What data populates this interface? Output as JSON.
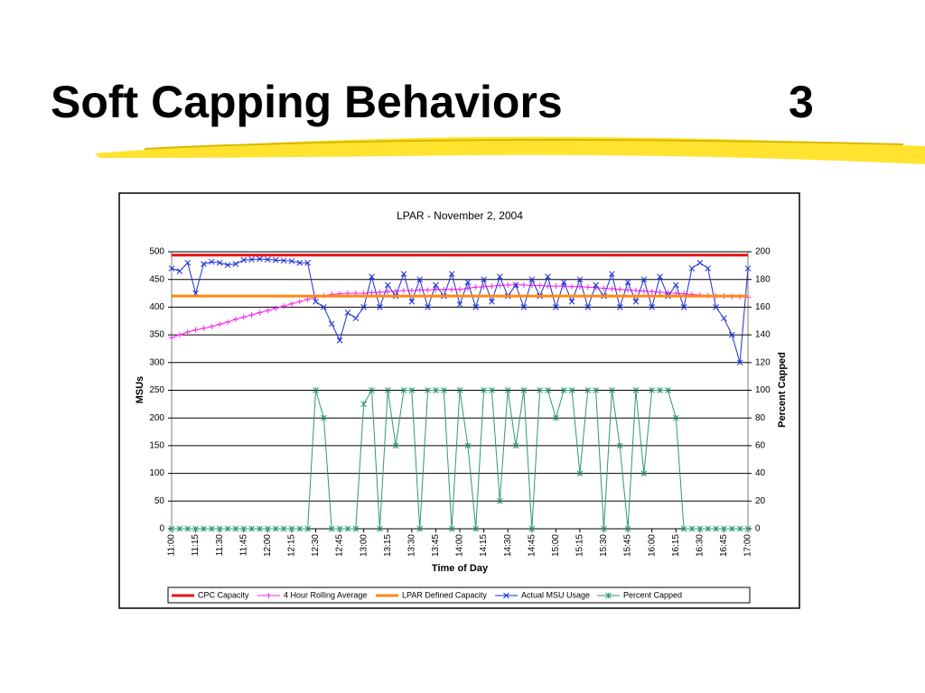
{
  "slide": {
    "title": "Soft Capping Behaviors",
    "number": "3"
  },
  "chart_data": {
    "type": "line",
    "title": "LPAR - November 2, 2004",
    "xlabel": "Time of Day",
    "ylabel": "MSUs",
    "y2label": "Percent Capped",
    "categories": [
      "11:00",
      null,
      null,
      "11:15",
      null,
      null,
      "11:30",
      null,
      null,
      "11:45",
      null,
      null,
      "12:00",
      null,
      null,
      "12:15",
      null,
      null,
      "12:30",
      null,
      null,
      "12:45",
      null,
      null,
      "13:00",
      null,
      null,
      "13:15",
      null,
      null,
      "13:30",
      null,
      null,
      "13:45",
      null,
      null,
      "14:00",
      null,
      null,
      "14:15",
      null,
      null,
      "14:30",
      null,
      null,
      "14:45",
      null,
      null,
      "15:00",
      null,
      null,
      "15:15",
      null,
      null,
      "15:30",
      null,
      null,
      "15:45",
      null,
      null,
      "16:00",
      null,
      null,
      "16:15",
      null,
      null,
      "16:30",
      null,
      null,
      "16:45",
      null,
      null,
      "17:00"
    ],
    "series": [
      {
        "name": "CPC Capacity",
        "color": "#ee1111",
        "marker": "none",
        "values": [
          494,
          494,
          494,
          494,
          494,
          494,
          494,
          494,
          494,
          494,
          494,
          494,
          494,
          494,
          494,
          494,
          494,
          494,
          494,
          494,
          494,
          494,
          494,
          494,
          494,
          494,
          494,
          494,
          494,
          494,
          494,
          494,
          494,
          494,
          494,
          494,
          494,
          494,
          494,
          494,
          494,
          494,
          494,
          494,
          494,
          494,
          494,
          494,
          494,
          494,
          494,
          494,
          494,
          494,
          494,
          494,
          494,
          494,
          494,
          494,
          494,
          494,
          494,
          494,
          494,
          494,
          494,
          494,
          494,
          494,
          494,
          494,
          494
        ]
      },
      {
        "name": "4 Hour Rolling Average",
        "color": "#ff22ee",
        "marker": "plus",
        "values": [
          345,
          350,
          355,
          359,
          362,
          365,
          369,
          373,
          378,
          382,
          386,
          390,
          394,
          398,
          402,
          406,
          410,
          414,
          418,
          421,
          423,
          424,
          425,
          425,
          425,
          426,
          427,
          428,
          429,
          430,
          430,
          431,
          431,
          432,
          432,
          432,
          432,
          434,
          436,
          437,
          438,
          439,
          440,
          440,
          440,
          439,
          439,
          438,
          438,
          438,
          437,
          437,
          436,
          435,
          434,
          433,
          432,
          431,
          430,
          429,
          428,
          427,
          426,
          425,
          424,
          423,
          422,
          421,
          420,
          420,
          419,
          419,
          418
        ]
      },
      {
        "name": "LPAR Defined Capacity",
        "color": "#ff8811",
        "marker": "none",
        "values": [
          420,
          420,
          420,
          420,
          420,
          420,
          420,
          420,
          420,
          420,
          420,
          420,
          420,
          420,
          420,
          420,
          420,
          420,
          420,
          420,
          420,
          420,
          420,
          420,
          420,
          420,
          420,
          420,
          420,
          420,
          420,
          420,
          420,
          420,
          420,
          420,
          420,
          420,
          420,
          420,
          420,
          420,
          420,
          420,
          420,
          420,
          420,
          420,
          420,
          420,
          420,
          420,
          420,
          420,
          420,
          420,
          420,
          420,
          420,
          420,
          420,
          420,
          420,
          420,
          420,
          420,
          420,
          420,
          420,
          420,
          420,
          420,
          420
        ]
      },
      {
        "name": "Actual MSU Usage",
        "color": "#1a2fd6",
        "marker": "x",
        "values": [
          470,
          465,
          480,
          425,
          478,
          482,
          480,
          476,
          478,
          485,
          486,
          487,
          486,
          485,
          484,
          483,
          480,
          480,
          410,
          400,
          370,
          340,
          390,
          380,
          400,
          455,
          400,
          440,
          420,
          460,
          410,
          450,
          400,
          440,
          420,
          460,
          405,
          445,
          400,
          450,
          410,
          455,
          420,
          440,
          400,
          450,
          420,
          455,
          400,
          445,
          410,
          450,
          400,
          440,
          420,
          460,
          400,
          445,
          410,
          450,
          400,
          455,
          420,
          440,
          400,
          470,
          480,
          470,
          400,
          380,
          350,
          300,
          470
        ]
      },
      {
        "name": "Percent Capped",
        "color": "#2e9a6e",
        "marker": "star",
        "axis": "y2",
        "values": [
          0,
          0,
          0,
          0,
          0,
          0,
          0,
          0,
          0,
          0,
          0,
          0,
          0,
          0,
          0,
          0,
          0,
          0,
          100,
          80,
          0,
          0,
          0,
          0,
          90,
          100,
          0,
          100,
          60,
          100,
          100,
          0,
          100,
          100,
          100,
          0,
          100,
          60,
          0,
          100,
          100,
          20,
          100,
          60,
          100,
          0,
          100,
          100,
          80,
          100,
          100,
          40,
          100,
          100,
          0,
          100,
          60,
          0,
          100,
          40,
          100,
          100,
          100,
          80,
          0,
          0,
          0,
          0,
          0,
          0,
          0,
          0,
          0
        ]
      }
    ],
    "ylim": [
      0,
      500
    ],
    "yticks": [
      0,
      50,
      100,
      150,
      200,
      250,
      300,
      350,
      400,
      450,
      500
    ],
    "y2lim": [
      0,
      200
    ],
    "y2ticks": [
      0,
      20,
      40,
      60,
      80,
      100,
      120,
      140,
      160,
      180,
      200
    ],
    "grid": true,
    "legend": "bottom"
  }
}
